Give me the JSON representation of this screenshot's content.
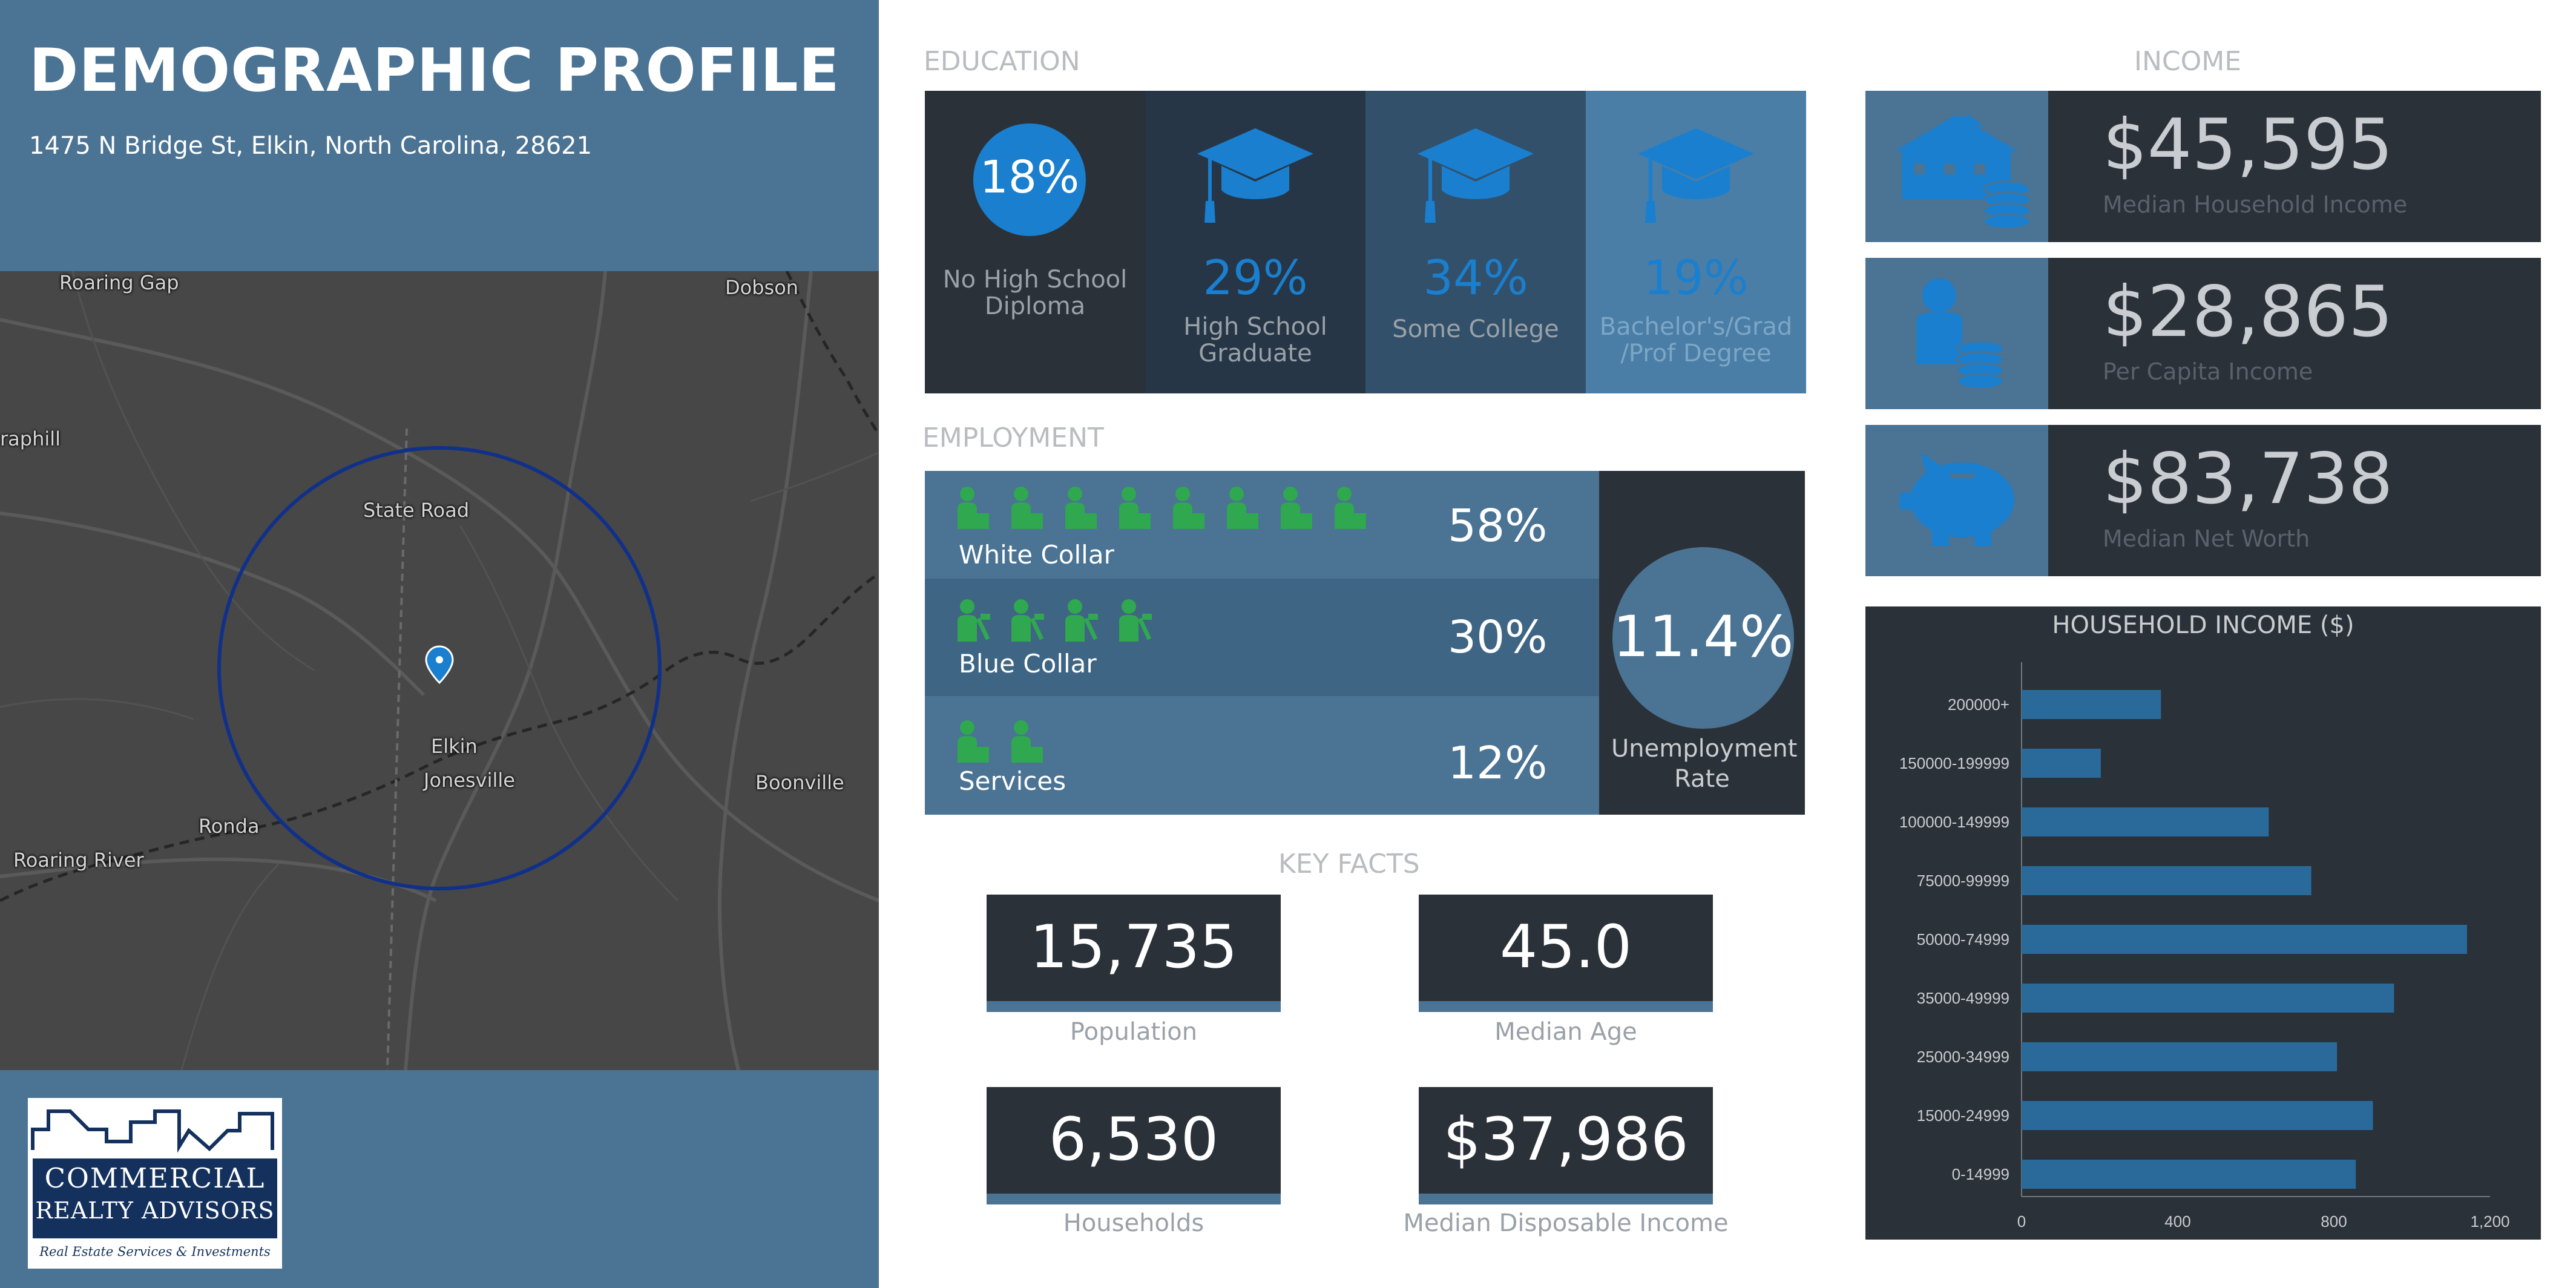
{
  "header": {
    "title": "DEMOGRAPHIC PROFILE",
    "address": "1475 N Bridge St, Elkin, North Carolina, 28621"
  },
  "map": {
    "places": [
      "Roaring Gap",
      "Dobson",
      "raphill",
      "State Road",
      "Elkin",
      "Jonesville",
      "Ronda",
      "Boonville",
      "Roaring River"
    ]
  },
  "logo": {
    "line1": "COMMERCIAL",
    "line2": "REALTY ADVISORS",
    "tagline": "Real Estate Services & Investments"
  },
  "education": {
    "heading": "EDUCATION",
    "items": [
      {
        "pct": "18%",
        "label": "No High School Diploma",
        "bg": "#2b3138"
      },
      {
        "pct": "29%",
        "label": "High School Graduate",
        "bg": "#263646"
      },
      {
        "pct": "34%",
        "label": "Some College",
        "bg": "#33506a"
      },
      {
        "pct": "19%",
        "label": "Bachelor's/Grad /Prof Degree",
        "bg": "#4a7ea6"
      }
    ]
  },
  "employment": {
    "heading": "EMPLOYMENT",
    "rows": [
      {
        "label": "White Collar",
        "pct": "58%"
      },
      {
        "label": "Blue Collar",
        "pct": "30%"
      },
      {
        "label": "Services",
        "pct": "12%"
      }
    ],
    "unemployment": {
      "value": "11.4%",
      "label": "Unemployment Rate"
    }
  },
  "key_facts": {
    "heading": "KEY FACTS",
    "items": [
      {
        "value": "15,735",
        "label": "Population"
      },
      {
        "value": "45.0",
        "label": "Median Age"
      },
      {
        "value": "6,530",
        "label": "Households"
      },
      {
        "value": "$37,986",
        "label": "Median Disposable Income"
      }
    ]
  },
  "income": {
    "heading": "INCOME",
    "items": [
      {
        "value": "$45,595",
        "label": "Median Household Income",
        "icon": "house-coins-icon"
      },
      {
        "value": "$28,865",
        "label": "Per Capita Income",
        "icon": "person-coins-icon"
      },
      {
        "value": "$83,738",
        "label": "Median Net Worth",
        "icon": "piggy-bank-icon"
      }
    ]
  },
  "colors": {
    "accent_blue": "#1a7fce",
    "panel_dark": "#2b3138",
    "steel_blue": "#4a7394",
    "person_green": "#2fa84f",
    "bar_blue": "#2a6a9a"
  },
  "chart_data": {
    "type": "bar",
    "orientation": "horizontal",
    "title": "HOUSEHOLD INCOME ($)",
    "categories": [
      "200000+",
      "150000-199999",
      "100000-149999",
      "75000-99999",
      "50000-74999",
      "35000-49999",
      "25000-34999",
      "15000-24999",
      "0-14999"
    ],
    "values": [
      357,
      203,
      633,
      742,
      1141,
      954,
      808,
      900,
      856
    ],
    "xlim": [
      0,
      1200
    ],
    "xticks": [
      "0",
      "400",
      "800",
      "1,200"
    ],
    "xtick_values": [
      0,
      400,
      800,
      1200
    ],
    "grid": false,
    "legend": "none"
  }
}
